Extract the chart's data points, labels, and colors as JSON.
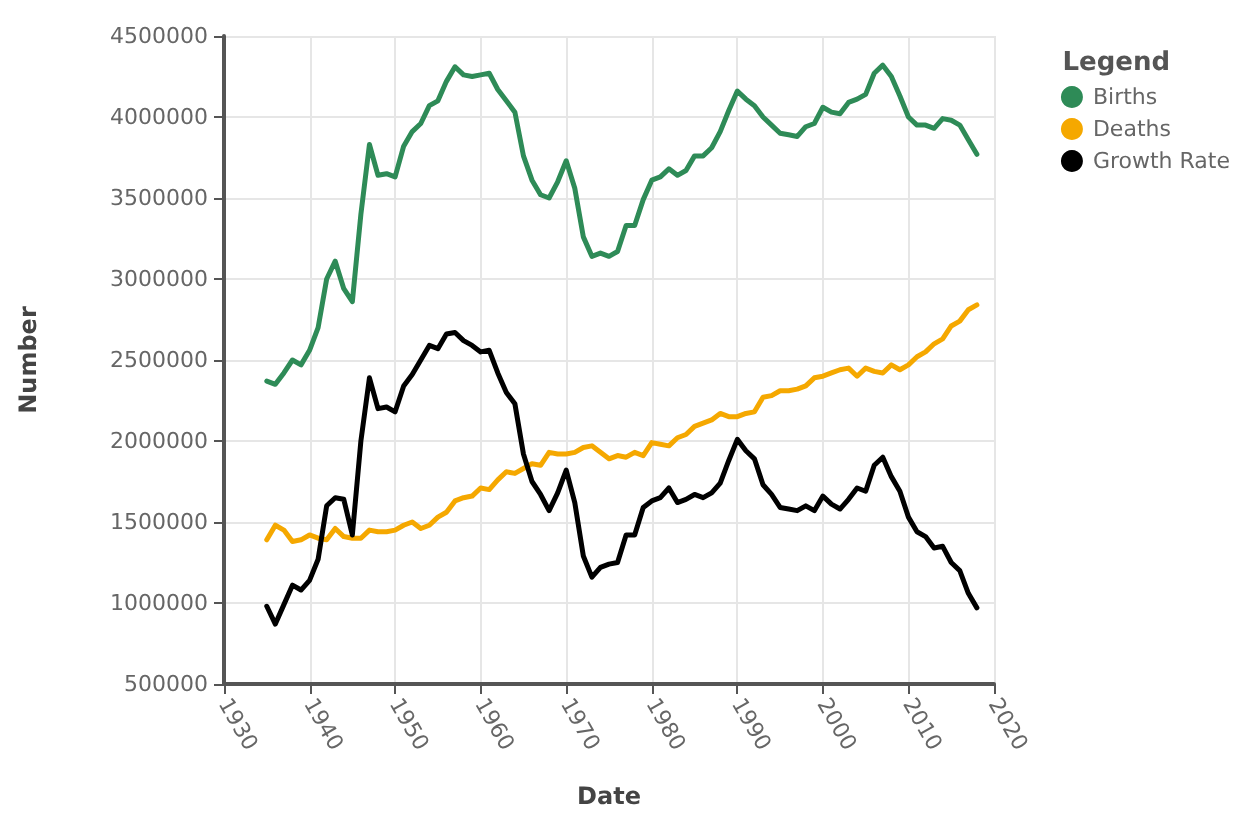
{
  "chart_data": {
    "type": "line",
    "xlabel": "Date",
    "ylabel": "Number",
    "legend_title": "Legend",
    "x": [
      1935,
      1936,
      1937,
      1938,
      1939,
      1940,
      1941,
      1942,
      1943,
      1944,
      1945,
      1946,
      1947,
      1948,
      1949,
      1950,
      1951,
      1952,
      1953,
      1954,
      1955,
      1956,
      1957,
      1958,
      1959,
      1960,
      1961,
      1962,
      1963,
      1964,
      1965,
      1966,
      1967,
      1968,
      1969,
      1970,
      1971,
      1972,
      1973,
      1974,
      1975,
      1976,
      1977,
      1978,
      1979,
      1980,
      1981,
      1982,
      1983,
      1984,
      1985,
      1986,
      1987,
      1988,
      1989,
      1990,
      1991,
      1992,
      1993,
      1994,
      1995,
      1996,
      1997,
      1998,
      1999,
      2000,
      2001,
      2002,
      2003,
      2004,
      2005,
      2006,
      2007,
      2008,
      2009,
      2010,
      2011,
      2012,
      2013,
      2014,
      2015,
      2016,
      2017,
      2018
    ],
    "series": [
      {
        "name": "Births",
        "color": "#2e8b57",
        "values": [
          2370000,
          2350000,
          2420000,
          2500000,
          2470000,
          2560000,
          2700000,
          3000000,
          3110000,
          2940000,
          2860000,
          3400000,
          3830000,
          3640000,
          3650000,
          3630000,
          3820000,
          3910000,
          3960000,
          4070000,
          4100000,
          4220000,
          4310000,
          4260000,
          4250000,
          4260000,
          4270000,
          4170000,
          4100000,
          4030000,
          3760000,
          3610000,
          3520000,
          3500000,
          3600000,
          3730000,
          3560000,
          3260000,
          3140000,
          3160000,
          3140000,
          3170000,
          3330000,
          3330000,
          3490000,
          3610000,
          3630000,
          3680000,
          3640000,
          3670000,
          3760000,
          3760000,
          3810000,
          3910000,
          4040000,
          4160000,
          4110000,
          4070000,
          4000000,
          3950000,
          3900000,
          3890000,
          3880000,
          3940000,
          3960000,
          4060000,
          4030000,
          4020000,
          4090000,
          4110000,
          4140000,
          4270000,
          4320000,
          4250000,
          4130000,
          4000000,
          3950000,
          3950000,
          3930000,
          3990000,
          3980000,
          3950000,
          3860000,
          3770000
        ]
      },
      {
        "name": "Deaths",
        "color": "#f5a800",
        "values": [
          1390000,
          1480000,
          1450000,
          1380000,
          1390000,
          1420000,
          1400000,
          1390000,
          1460000,
          1410000,
          1400000,
          1400000,
          1450000,
          1440000,
          1440000,
          1450000,
          1480000,
          1500000,
          1460000,
          1480000,
          1530000,
          1560000,
          1630000,
          1650000,
          1660000,
          1710000,
          1700000,
          1760000,
          1810000,
          1800000,
          1830000,
          1860000,
          1850000,
          1930000,
          1920000,
          1920000,
          1930000,
          1960000,
          1970000,
          1930000,
          1890000,
          1910000,
          1900000,
          1930000,
          1910000,
          1990000,
          1980000,
          1970000,
          2020000,
          2040000,
          2090000,
          2110000,
          2130000,
          2170000,
          2150000,
          2150000,
          2170000,
          2180000,
          2270000,
          2280000,
          2310000,
          2310000,
          2320000,
          2340000,
          2390000,
          2400000,
          2420000,
          2440000,
          2450000,
          2400000,
          2450000,
          2430000,
          2420000,
          2470000,
          2440000,
          2470000,
          2520000,
          2550000,
          2600000,
          2630000,
          2710000,
          2740000,
          2810000,
          2840000
        ]
      },
      {
        "name": "Growth Rate",
        "color": "#000000",
        "values": [
          980000,
          870000,
          990000,
          1110000,
          1080000,
          1140000,
          1270000,
          1600000,
          1650000,
          1640000,
          1420000,
          2000000,
          2390000,
          2200000,
          2210000,
          2180000,
          2340000,
          2410000,
          2500000,
          2590000,
          2570000,
          2660000,
          2670000,
          2620000,
          2590000,
          2550000,
          2560000,
          2420000,
          2300000,
          2230000,
          1920000,
          1750000,
          1670000,
          1570000,
          1680000,
          1820000,
          1620000,
          1290000,
          1160000,
          1220000,
          1240000,
          1250000,
          1420000,
          1420000,
          1590000,
          1630000,
          1650000,
          1710000,
          1620000,
          1640000,
          1670000,
          1650000,
          1680000,
          1740000,
          1880000,
          2010000,
          1940000,
          1890000,
          1730000,
          1670000,
          1590000,
          1580000,
          1570000,
          1600000,
          1570000,
          1660000,
          1610000,
          1580000,
          1640000,
          1710000,
          1690000,
          1850000,
          1900000,
          1780000,
          1690000,
          1530000,
          1440000,
          1410000,
          1340000,
          1350000,
          1250000,
          1200000,
          1060000,
          970000
        ]
      }
    ],
    "xlim": [
      1930,
      2020
    ],
    "xticks": [
      1930,
      1940,
      1950,
      1960,
      1970,
      1980,
      1990,
      2000,
      2010,
      2020
    ],
    "ylim": [
      500000,
      4500000
    ],
    "yticks": [
      500000,
      1000000,
      1500000,
      2000000,
      2500000,
      3000000,
      3500000,
      4000000,
      4500000
    ],
    "grid": true,
    "legend": "top right",
    "marker": "none",
    "line_style": "solid"
  }
}
